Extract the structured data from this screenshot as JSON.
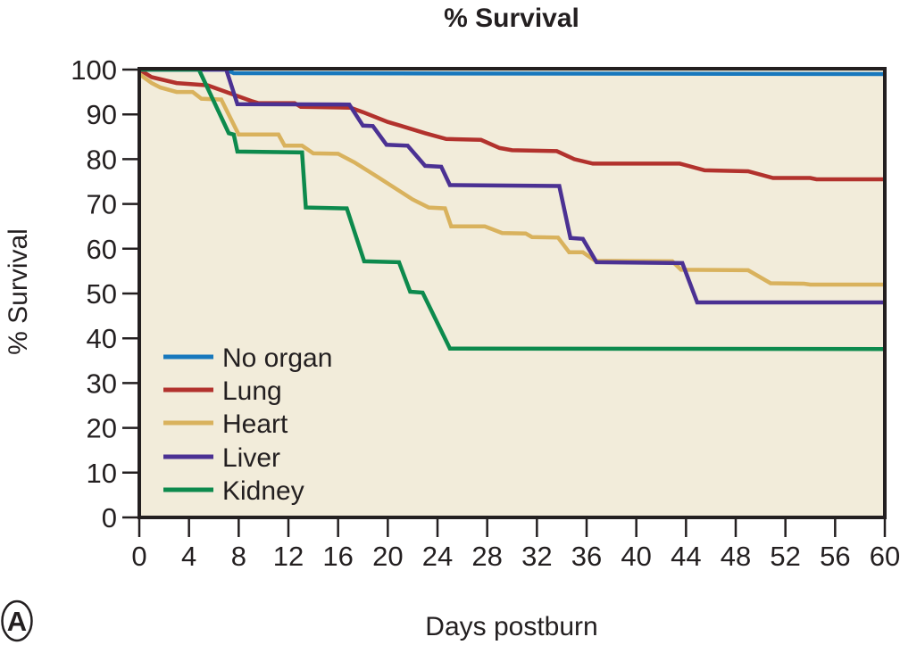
{
  "figure": {
    "title": "% Survival",
    "y_axis_label": "% Survival",
    "x_axis_label": "Days postburn",
    "panel_label": "A"
  },
  "chart_data": {
    "type": "line",
    "subtype": "kaplan-meier-step-curves",
    "title": "% Survival",
    "xlabel": "Days postburn",
    "ylabel": "% Survival",
    "xlim": [
      0,
      60
    ],
    "ylim": [
      0,
      100
    ],
    "x_ticks": [
      0,
      4,
      8,
      12,
      16,
      20,
      24,
      28,
      32,
      36,
      40,
      44,
      48,
      52,
      56,
      60
    ],
    "y_ticks": [
      0,
      10,
      20,
      30,
      40,
      50,
      60,
      70,
      80,
      90,
      100
    ],
    "grid": false,
    "legend_position": "inside-lower-left",
    "plot_background_color": "#f2ecda",
    "axis_color": "#231f20",
    "series": [
      {
        "name": "No organ",
        "color": "#1878bd",
        "points": [
          [
            0,
            100
          ],
          [
            7,
            100
          ],
          [
            7.6,
            99.2
          ],
          [
            60,
            99
          ]
        ]
      },
      {
        "name": "Lung",
        "color": "#b2322d",
        "points": [
          [
            0,
            100
          ],
          [
            1,
            98.3
          ],
          [
            3,
            97
          ],
          [
            5.5,
            96.5
          ],
          [
            7,
            95
          ],
          [
            9,
            93
          ],
          [
            9.6,
            92.5
          ],
          [
            12.5,
            92.5
          ],
          [
            13,
            91.7
          ],
          [
            17,
            91.5
          ],
          [
            18,
            90.5
          ],
          [
            20,
            88.3
          ],
          [
            21,
            87.5
          ],
          [
            23,
            85.8
          ],
          [
            24.7,
            84.5
          ],
          [
            27.5,
            84.3
          ],
          [
            29,
            82.5
          ],
          [
            30,
            82
          ],
          [
            33.6,
            81.8
          ],
          [
            35,
            80
          ],
          [
            36.5,
            79
          ],
          [
            43.5,
            79
          ],
          [
            45.5,
            77.5
          ],
          [
            49,
            77.3
          ],
          [
            51,
            75.8
          ],
          [
            54,
            75.8
          ],
          [
            54.5,
            75.5
          ],
          [
            60,
            75.5
          ]
        ]
      },
      {
        "name": "Heart",
        "color": "#d9b25d",
        "points": [
          [
            0,
            99
          ],
          [
            1,
            97
          ],
          [
            1.7,
            96
          ],
          [
            3,
            95
          ],
          [
            4.3,
            95
          ],
          [
            5,
            93.5
          ],
          [
            6.6,
            93.3
          ],
          [
            8,
            85.5
          ],
          [
            11.2,
            85.5
          ],
          [
            11.7,
            83
          ],
          [
            13.1,
            83
          ],
          [
            14,
            81.3
          ],
          [
            16,
            81.2
          ],
          [
            17.3,
            79.3
          ],
          [
            19.2,
            76
          ],
          [
            22,
            71
          ],
          [
            23.3,
            69.2
          ],
          [
            24.6,
            69
          ],
          [
            25.1,
            65
          ],
          [
            27.8,
            65
          ],
          [
            29.2,
            63.5
          ],
          [
            31.1,
            63.4
          ],
          [
            31.6,
            62.6
          ],
          [
            33.7,
            62.5
          ],
          [
            34.6,
            59.2
          ],
          [
            35.7,
            59.2
          ],
          [
            36.7,
            57.3
          ],
          [
            42.9,
            57.2
          ],
          [
            43.6,
            55.3
          ],
          [
            49,
            55.2
          ],
          [
            50.8,
            52.3
          ],
          [
            53.5,
            52.2
          ],
          [
            54,
            52
          ],
          [
            60,
            52
          ]
        ]
      },
      {
        "name": "Liver",
        "color": "#4b3193",
        "points": [
          [
            0,
            100
          ],
          [
            7,
            100
          ],
          [
            7.9,
            92.3
          ],
          [
            16.9,
            92.2
          ],
          [
            18,
            87.5
          ],
          [
            18.8,
            87.4
          ],
          [
            19.9,
            83.2
          ],
          [
            21.6,
            83
          ],
          [
            23,
            78.5
          ],
          [
            24.3,
            78.3
          ],
          [
            25,
            74.2
          ],
          [
            33.8,
            74
          ],
          [
            34.7,
            62.4
          ],
          [
            35.7,
            62.2
          ],
          [
            36.8,
            57
          ],
          [
            43.7,
            56.8
          ],
          [
            44.9,
            48
          ],
          [
            60,
            48
          ]
        ]
      },
      {
        "name": "Kidney",
        "color": "#0d8a4d",
        "points": [
          [
            0,
            100
          ],
          [
            4.8,
            100
          ],
          [
            7.2,
            85.8
          ],
          [
            7.6,
            85.5
          ],
          [
            7.9,
            81.7
          ],
          [
            13.1,
            81.5
          ],
          [
            13.4,
            69.2
          ],
          [
            16.7,
            69
          ],
          [
            18.1,
            57.2
          ],
          [
            20.9,
            57
          ],
          [
            21.8,
            50.4
          ],
          [
            22.8,
            50.2
          ],
          [
            25,
            37.7
          ],
          [
            60,
            37.6
          ]
        ]
      }
    ]
  }
}
